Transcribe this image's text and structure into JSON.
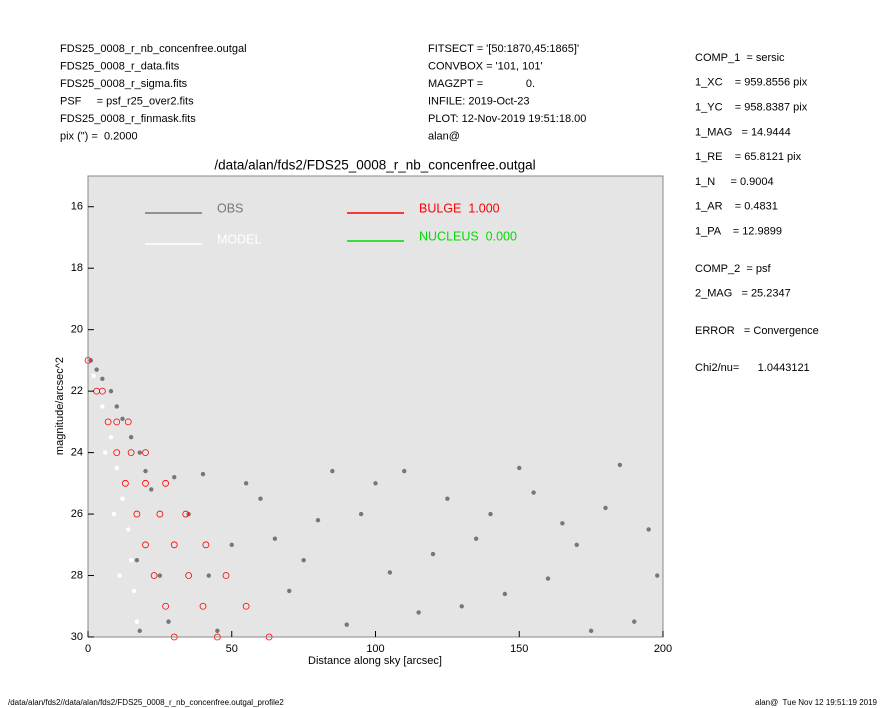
{
  "header": {
    "left": [
      "FDS25_0008_r_nb_concenfree.outgal",
      "FDS25_0008_r_data.fits",
      "FDS25_0008_r_sigma.fits",
      "PSF     = psf_r25_over2.fits",
      "FDS25_0008_r_finmask.fits",
      "pix (\") =  0.2000"
    ],
    "center": [
      "FITSECT = '[50:1870,45:1865]'",
      "CONVBOX = '101, 101'",
      "MAGZPT =              0.",
      "INFILE: 2019-Oct-23",
      "PLOT: 12-Nov-2019 19:51:18.00",
      "alan@"
    ]
  },
  "params": [
    [
      "COMP_1  = sersic",
      "1_XC    = 959.8556 pix",
      "1_YC    = 958.8387 pix",
      "1_MAG   = 14.9444",
      "1_RE    = 65.8121 pix",
      "1_N     = 0.9004",
      "1_AR    = 0.4831",
      "1_PA    = 12.9899"
    ],
    [
      "COMP_2  = psf",
      "2_MAG   = 25.2347"
    ],
    [
      "ERROR   = Convergence"
    ],
    [
      "Chi2/nu=      1.0443121"
    ]
  ],
  "footer": {
    "left": "/data/alan/fds2//data/alan/fds2/FDS25_0008_r_nb_concenfree.outgal_profile2",
    "right": "alan@  Tue Nov 12 19:51:19 2019"
  },
  "chart_data": {
    "type": "scatter",
    "title": "/data/alan/fds2/FDS25_0008_r_nb_concenfree.outgal",
    "x_label": "Distance along sky [arcsec]",
    "y_label": "magnitude/arcsec^2",
    "xlim": [
      0,
      200
    ],
    "ylim": [
      15,
      30
    ],
    "y_inverted": true,
    "xticks": [
      0,
      50,
      100,
      150,
      200
    ],
    "yticks": [
      16,
      18,
      20,
      22,
      24,
      26,
      28,
      30
    ],
    "background": "#e5e5e5",
    "series": [
      {
        "name": "OBS",
        "color": "#777777",
        "x": [
          1,
          3,
          5,
          8,
          10,
          12,
          15,
          18,
          20,
          22,
          17,
          18,
          25,
          28,
          30,
          40,
          60,
          80,
          100,
          120,
          140,
          160,
          180,
          195,
          50,
          70,
          90,
          110,
          130,
          150,
          170,
          190,
          45,
          65,
          85,
          105,
          125,
          145,
          165,
          185,
          198,
          55,
          75,
          95,
          115,
          135,
          155,
          175,
          35,
          42
        ],
        "values": [
          21.0,
          21.3,
          21.6,
          22.0,
          22.5,
          22.9,
          23.5,
          24.0,
          24.6,
          25.2,
          27.5,
          29.8,
          28.0,
          29.5,
          24.8,
          24.7,
          25.5,
          26.2,
          25.0,
          27.3,
          26.0,
          28.1,
          25.8,
          26.5,
          27.0,
          28.5,
          29.6,
          24.6,
          29.0,
          24.5,
          27.0,
          29.5,
          29.8,
          26.8,
          24.6,
          27.9,
          25.5,
          28.6,
          26.3,
          24.4,
          28.0,
          25.0,
          27.5,
          26.0,
          29.2,
          26.8,
          25.3,
          29.8,
          26.0,
          28.0
        ]
      },
      {
        "name": "MODEL",
        "color": "#ffffff",
        "x": [
          2,
          5,
          8,
          10,
          12,
          14,
          15,
          16,
          17,
          6,
          9,
          11
        ],
        "values": [
          21.5,
          22.5,
          23.5,
          24.5,
          25.5,
          26.5,
          27.5,
          28.5,
          29.5,
          24.0,
          26.0,
          28.0
        ]
      },
      {
        "name": "BULGE  1.000",
        "color": "#ff0000",
        "x": [
          0,
          3,
          5,
          7,
          10,
          14,
          10,
          15,
          20,
          13,
          20,
          27,
          17,
          25,
          34,
          20,
          30,
          41,
          23,
          35,
          48,
          27,
          40,
          55,
          30,
          45,
          63
        ],
        "values": [
          21,
          22,
          22,
          23,
          23,
          23,
          24,
          24,
          24,
          25,
          25,
          25,
          26,
          26,
          26,
          27,
          27,
          27,
          28,
          28,
          28,
          29,
          29,
          29,
          30,
          30,
          30
        ]
      },
      {
        "name": "NUCLEUS  0.000",
        "color": "#00dd00",
        "x": [],
        "values": []
      }
    ]
  }
}
